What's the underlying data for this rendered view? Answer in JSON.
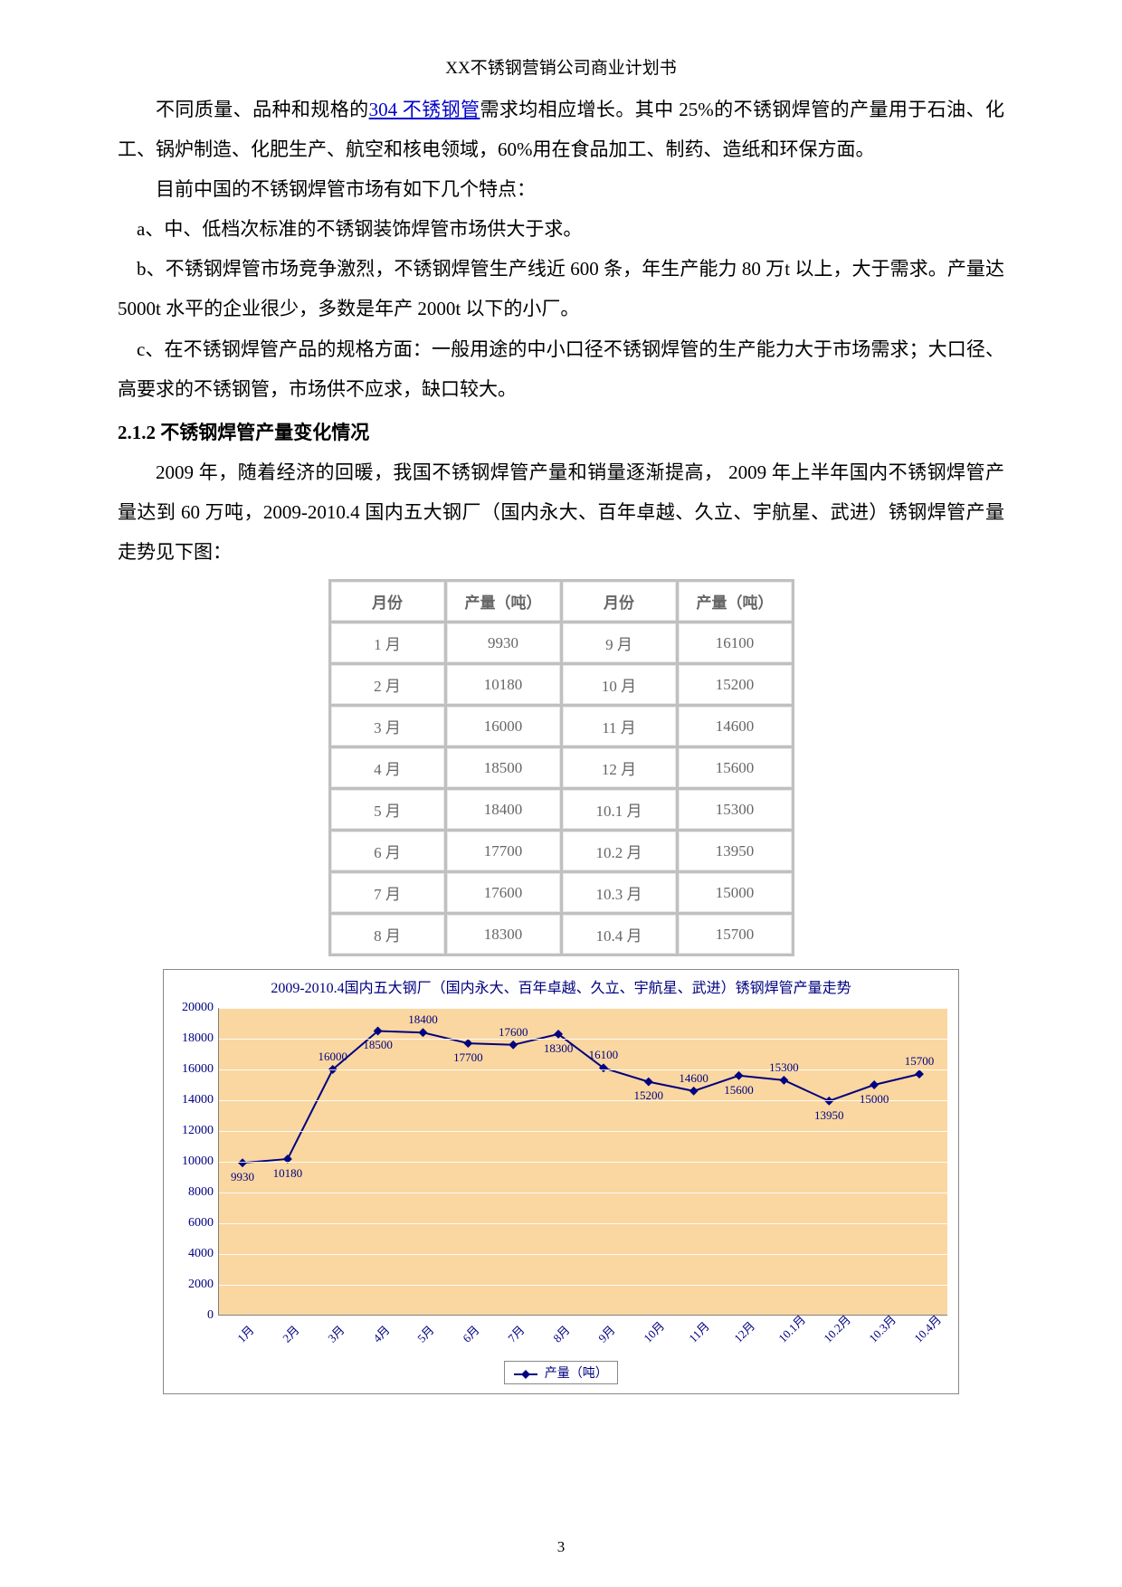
{
  "header": {
    "title": "XX不锈钢营销公司商业计划书"
  },
  "body": {
    "p1_pre": "不同质量、品种和规格的",
    "p1_link": "304 不锈钢管",
    "p1_post": "需求均相应增长。其中 25%的不锈钢焊管的产量用于石油、化工、锅炉制造、化肥生产、航空和核电领域，60%用在食品加工、制药、造纸和环保方面。",
    "p2": "目前中国的不锈钢焊管市场有如下几个特点：",
    "p3": "a、中、低档次标准的不锈钢装饰焊管市场供大于求。",
    "p4": "b、不锈钢焊管市场竞争激烈，不锈钢焊管生产线近 600 条，年生产能力 80 万t 以上，大于需求。产量达 5000t 水平的企业很少，多数是年产 2000t 以下的小厂。",
    "p5": "c、在不锈钢焊管产品的规格方面：一般用途的中小口径不锈钢焊管的生产能力大于市场需求；大口径、高要求的不锈钢管，市场供不应求，缺口较大。",
    "heading_212": "2.1.2 不锈钢焊管产量变化情况",
    "p6": "2009 年，随着经济的回暖，我国不锈钢焊管产量和销量逐渐提高， 2009 年上半年国内不锈钢焊管产量达到 60 万吨，2009-2010.4 国内五大钢厂（国内永大、百年卓越、久立、宇航星、武进）锈钢焊管产量走势见下图："
  },
  "table": {
    "headers": [
      "月份",
      "产量（吨）",
      "月份",
      "产量（吨）"
    ],
    "rows": [
      [
        "1 月",
        "9930",
        "9 月",
        "16100"
      ],
      [
        "2 月",
        "10180",
        "10 月",
        "15200"
      ],
      [
        "3 月",
        "16000",
        "11 月",
        "14600"
      ],
      [
        "4 月",
        "18500",
        "12 月",
        "15600"
      ],
      [
        "5 月",
        "18400",
        "10.1 月",
        "15300"
      ],
      [
        "6 月",
        "17700",
        "10.2 月",
        "13950"
      ],
      [
        "7 月",
        "17600",
        "10.3 月",
        "15000"
      ],
      [
        "8 月",
        "18300",
        "10.4 月",
        "15700"
      ]
    ]
  },
  "chart": {
    "type": "line",
    "title": "2009-2010.4国内五大钢厂（国内永大、百年卓越、久立、宇航星、武进）锈钢焊管产量走势",
    "legend_label": "产量（吨）",
    "series_color": "#000080",
    "background_color": "#fad7a0",
    "grid_color": "#ffffff",
    "text_color": "#000080",
    "marker_style": "diamond",
    "marker_size": 7,
    "line_width": 2,
    "ylim": [
      0,
      20000
    ],
    "ytick_step": 2000,
    "yticks": [
      0,
      2000,
      4000,
      6000,
      8000,
      10000,
      12000,
      14000,
      16000,
      18000,
      20000
    ],
    "categories": [
      "1月",
      "2月",
      "3月",
      "4月",
      "5月",
      "6月",
      "7月",
      "8月",
      "9月",
      "10月",
      "11月",
      "12月",
      "10.1月",
      "10.2月",
      "10.3月",
      "10.4月"
    ],
    "values": [
      9930,
      10180,
      16000,
      18500,
      18400,
      17700,
      17600,
      18300,
      16100,
      15200,
      14600,
      15600,
      15300,
      13950,
      15000,
      15700
    ],
    "label_positions": [
      "below",
      "below",
      "above",
      "below",
      "above",
      "below",
      "above",
      "below",
      "above",
      "below",
      "above",
      "below",
      "above",
      "below",
      "below",
      "above"
    ]
  },
  "page_number": "3"
}
